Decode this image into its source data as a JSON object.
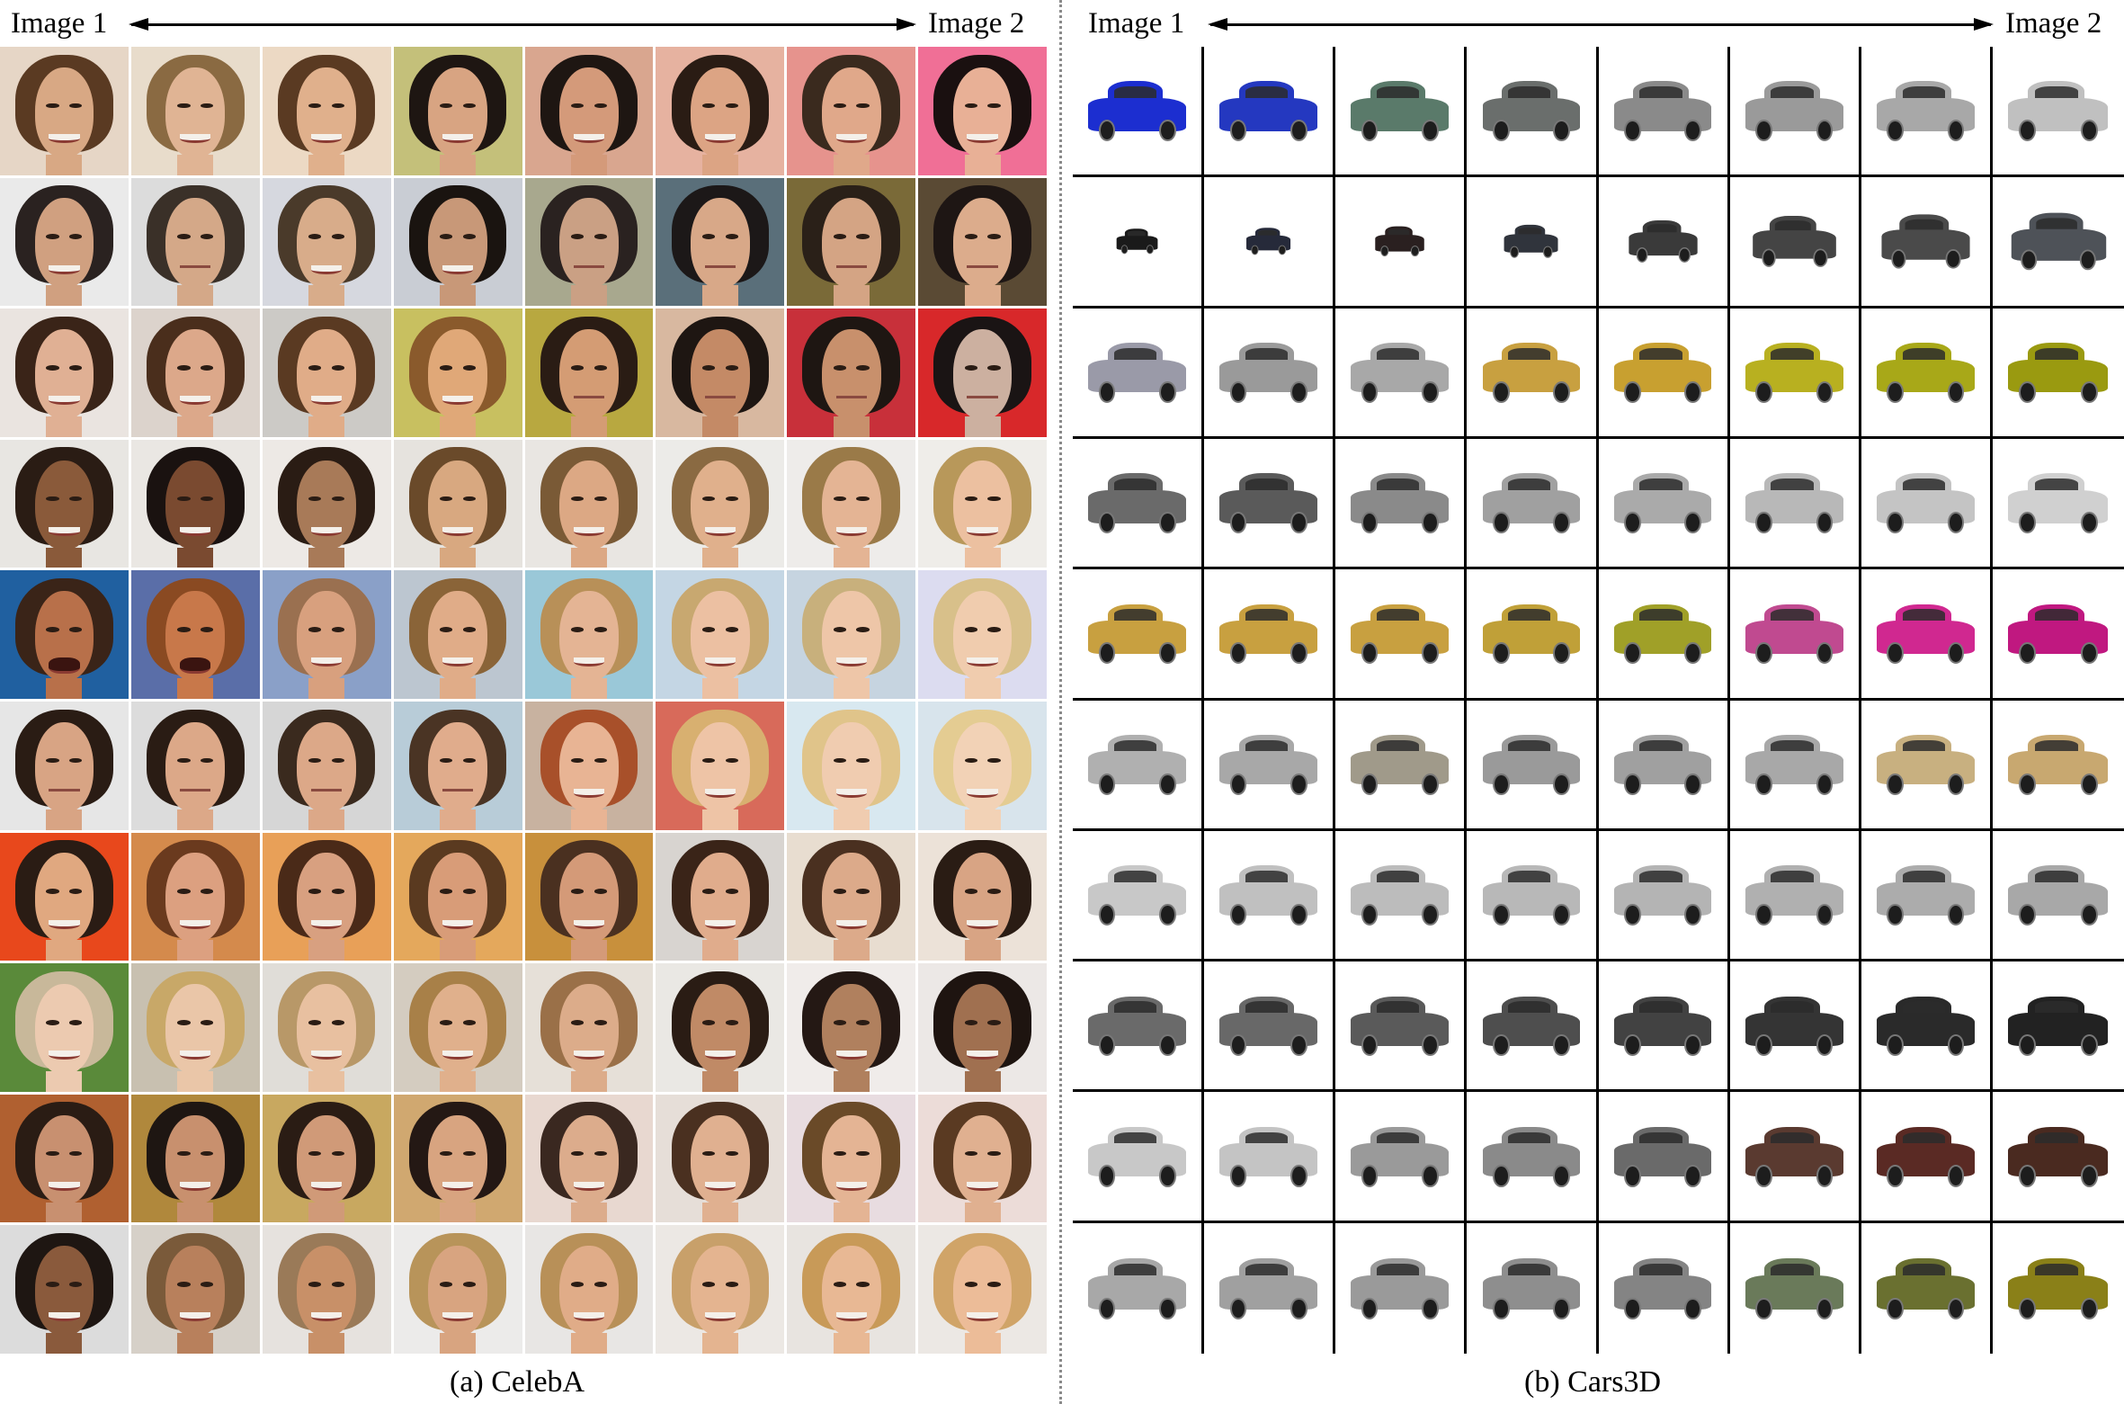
{
  "left_panel": {
    "start_label": "Image 1",
    "end_label": "Image 2",
    "caption": "(a) CelebA",
    "backgrounds": [
      [
        "#e6d6c6",
        "#e8dccb",
        "#ecd9c4",
        "#c4c07a",
        "#d9a68f",
        "#e6b2a0",
        "#e6938d",
        "#f06f96"
      ],
      [
        "#eaeaea",
        "#dcdcdc",
        "#d6d8df",
        "#c9cdd4",
        "#a8a88e",
        "#5a6f7a",
        "#7a6a38",
        "#5a4a34"
      ],
      [
        "#eae4e0",
        "#dcd3cc",
        "#cccac6",
        "#c8c060",
        "#b8a840",
        "#d8b8a0",
        "#c8303a",
        "#d8282a"
      ],
      [
        "#e8e6e2",
        "#eae7e3",
        "#ede9e5",
        "#e6e3de",
        "#e9e6e2",
        "#ecebe8",
        "#eeecea",
        "#efede9"
      ],
      [
        "#2060a0",
        "#5a6ea8",
        "#8aa0c8",
        "#bcc6d0",
        "#9ac8d8",
        "#c4d6e4",
        "#c6d4e0",
        "#dcdcf0"
      ],
      [
        "#e6e6e6",
        "#dcdcdc",
        "#d6d6d6",
        "#b8ccd8",
        "#c8b2a0",
        "#d86a5a",
        "#d8e8f0",
        "#d8e4ec"
      ],
      [
        "#e8481c",
        "#d48a4c",
        "#e8a058",
        "#e4a85c",
        "#c8903c",
        "#d8d4d0",
        "#e8ddd0",
        "#ece2d8"
      ],
      [
        "#5a8a3a",
        "#c8c0b0",
        "#e0ddd8",
        "#d4ccc0",
        "#e6e0d8",
        "#eae8e4",
        "#f0ecea",
        "#ece8e6"
      ],
      [
        "#b06030",
        "#b0883c",
        "#c8a860",
        "#d0a870",
        "#e8d8d0",
        "#e6ded8",
        "#e8dce0",
        "#ecdcd8"
      ],
      [
        "#dcdcdc",
        "#d6d0c8",
        "#e6e2de",
        "#ecebea",
        "#e8e6e4",
        "#ece8e4",
        "#e8e4e0",
        "#ece8e4"
      ]
    ],
    "hair_colors": [
      [
        "#5a3a22",
        "#8a6a42",
        "#5a3a22",
        "#1e1612",
        "#1e1612",
        "#2a1c14",
        "#3a2a1e",
        "#1a1010"
      ],
      [
        "#2a2220",
        "#3a3028",
        "#4a3a2a",
        "#1a1410",
        "#2a2220",
        "#1c1818",
        "#2a2018",
        "#1e1614"
      ],
      [
        "#3a2418",
        "#4a2e1c",
        "#5a3a22",
        "#8a5a2c",
        "#2a1c14",
        "#1e1612",
        "#1e1612",
        "#1a1414"
      ],
      [
        "#2a1c14",
        "#1a1210",
        "#2a1c14",
        "#6a4a2a",
        "#7a5a36",
        "#8a6a42",
        "#9a7a48",
        "#b8985a"
      ],
      [
        "#3a2418",
        "#8a4a22",
        "#9a7050",
        "#8a6438",
        "#b89058",
        "#c8a870",
        "#c8b07c",
        "#d8c08a"
      ],
      [
        "#2a1c14",
        "#2a1c14",
        "#3a2a1e",
        "#4a3424",
        "#a8502a",
        "#d8b070",
        "#e0c48a",
        "#e4cc92"
      ],
      [
        "#2a1c14",
        "#6a3a1e",
        "#4a2a18",
        "#5a3a20",
        "#4a3020",
        "#3a2418",
        "#4a3020",
        "#2a1c14"
      ],
      [
        "#c8b89a",
        "#c8a868",
        "#b89868",
        "#a88048",
        "#9a7048",
        "#2a1c14",
        "#241814",
        "#1e1410"
      ],
      [
        "#2a1c14",
        "#1e1612",
        "#2a1c14",
        "#241814",
        "#3a2820",
        "#4a3020",
        "#6a4a28",
        "#5a3a22"
      ],
      [
        "#1e1612",
        "#7a5a3a",
        "#9a7a58",
        "#b8945a",
        "#b89058",
        "#c8a06a",
        "#c89a58",
        "#d0a468"
      ]
    ],
    "skin_colors": [
      [
        "#d8a884",
        "#e0b494",
        "#e0b08c",
        "#d8a482",
        "#d49a7a",
        "#dca484",
        "#e0a88a",
        "#e8b096"
      ],
      [
        "#d0a080",
        "#d4a888",
        "#d8ac8a",
        "#c89878",
        "#caa084",
        "#d8a888",
        "#d4a484",
        "#dcac8c"
      ],
      [
        "#e0b094",
        "#dca88a",
        "#e0ac88",
        "#e0a878",
        "#d49c74",
        "#c48a66",
        "#c8906c",
        "#ccb0a0"
      ],
      [
        "#8a5a3a",
        "#7a4a30",
        "#a87a58",
        "#d8a880",
        "#dca884",
        "#e0b08c",
        "#e4b494",
        "#ecc0a0"
      ],
      [
        "#b8704a",
        "#c8784a",
        "#d8a07e",
        "#e0ac88",
        "#e4b494",
        "#ecc0a2",
        "#eec6a8",
        "#f0ccae"
      ],
      [
        "#d8a484",
        "#dca888",
        "#dca888",
        "#e0ac8c",
        "#e8b494",
        "#eec4a6",
        "#f0ccb0",
        "#f2d2b6"
      ],
      [
        "#e0a880",
        "#dca080",
        "#d8a080",
        "#d89c78",
        "#d49a78",
        "#e0ac8c",
        "#dcaa8a",
        "#d8a484"
      ],
      [
        "#eccab0",
        "#eac6a8",
        "#e8c0a0",
        "#e0b08c",
        "#dcac8a",
        "#c08a66",
        "#b0805e",
        "#a07050"
      ],
      [
        "#c89070",
        "#c8906e",
        "#d09a78",
        "#d8a480",
        "#dcac8c",
        "#e0b090",
        "#e4b494",
        "#e0b090"
      ],
      [
        "#8a5a3c",
        "#b8805c",
        "#c89068",
        "#d8a480",
        "#e0ac88",
        "#e4b490",
        "#e8b894",
        "#ecbc98"
      ]
    ],
    "expressions": [
      [
        "smile",
        "smile",
        "smile",
        "smile",
        "smile",
        "smile",
        "smile",
        "smile"
      ],
      [
        "smile",
        "neutral",
        "smile",
        "smile",
        "neutral",
        "neutral",
        "neutral",
        "neutral"
      ],
      [
        "smile",
        "smile",
        "smile",
        "smile",
        "neutral",
        "neutral",
        "neutral",
        "neutral"
      ],
      [
        "smile",
        "smile",
        "smile",
        "smile",
        "smile",
        "smile",
        "smile",
        "smile"
      ],
      [
        "open",
        "open",
        "smile",
        "smile",
        "smile",
        "smile",
        "smile",
        "smile"
      ],
      [
        "neutral",
        "neutral",
        "neutral",
        "neutral",
        "smile",
        "smile",
        "smile",
        "smile"
      ],
      [
        "smile",
        "smile",
        "smile",
        "smile",
        "smile",
        "smile",
        "smile",
        "smile"
      ],
      [
        "smile",
        "smile",
        "smile",
        "smile",
        "smile",
        "smile",
        "smile",
        "smile"
      ],
      [
        "smile",
        "smile",
        "smile",
        "smile",
        "smile",
        "smile",
        "smile",
        "smile"
      ],
      [
        "smile",
        "smile",
        "smile",
        "smile",
        "smile",
        "smile",
        "smile",
        "smile"
      ]
    ]
  },
  "right_panel": {
    "start_label": "Image 1",
    "end_label": "Image 2",
    "caption": "(b) Cars3D",
    "car_colors": [
      [
        "#1c2ed0",
        "#2438c0",
        "#5a7a6a",
        "#6a6e6c",
        "#8a8a8a",
        "#9a9a9a",
        "#a8a8a8",
        "#c0c0c0"
      ],
      [
        "#1a1a1a",
        "#262a3a",
        "#2a2020",
        "#30343c",
        "#3a3a3a",
        "#444444",
        "#4a4a4a",
        "#4e5258"
      ],
      [
        "#9a9aa8",
        "#9a9a9a",
        "#a8a8a8",
        "#c8a040",
        "#c8a030",
        "#b8b020",
        "#a8a818",
        "#9a9a10"
      ],
      [
        "#6a6a6a",
        "#5a5a5a",
        "#8a8a8a",
        "#a0a0a0",
        "#aaaaaa",
        "#b8b8b8",
        "#c4c4c4",
        "#d0d0d0"
      ],
      [
        "#c8a040",
        "#c8a040",
        "#c8a040",
        "#c0a038",
        "#a0a028",
        "#c04a90",
        "#d02890",
        "#c01880"
      ],
      [
        "#b0b0b0",
        "#a8a8a8",
        "#a09a8a",
        "#9a9a9a",
        "#a0a0a0",
        "#a8a8a8",
        "#c8b080",
        "#c8a870"
      ],
      [
        "#c8c8c8",
        "#c0c0c0",
        "#bcbcbc",
        "#b8b8b8",
        "#b4b4b4",
        "#b0b0b0",
        "#acacac",
        "#a8a8a8"
      ],
      [
        "#6a6a6a",
        "#686868",
        "#5a5a5a",
        "#4e4e4e",
        "#424242",
        "#343434",
        "#2a2a2a",
        "#222222"
      ],
      [
        "#c8c8c8",
        "#c4c4c4",
        "#9a9a9a",
        "#8a8a8a",
        "#6a6a6a",
        "#5a3a30",
        "#5a2a24",
        "#4a2a20"
      ],
      [
        "#a8a8a8",
        "#a0a0a0",
        "#9a9a9a",
        "#8e8e8e",
        "#848484",
        "#6a7a5a",
        "#6a7030",
        "#8a8018"
      ]
    ],
    "car_scale": [
      [
        1.0,
        1.0,
        1.0,
        1.0,
        1.0,
        1.0,
        1.0,
        1.0
      ],
      [
        0.42,
        0.45,
        0.5,
        0.55,
        0.7,
        0.85,
        0.9,
        0.95
      ],
      [
        1.0,
        1.0,
        1.0,
        1.0,
        1.0,
        1.0,
        1.0,
        1.0
      ],
      [
        1.0,
        1.0,
        1.0,
        1.0,
        1.0,
        1.0,
        1.0,
        1.0
      ],
      [
        1.0,
        1.0,
        1.0,
        1.0,
        1.0,
        1.0,
        1.0,
        1.0
      ],
      [
        1.0,
        1.0,
        1.0,
        1.0,
        1.0,
        1.0,
        1.0,
        1.0
      ],
      [
        1.0,
        1.0,
        1.0,
        1.0,
        1.0,
        1.0,
        1.0,
        1.0
      ],
      [
        1.0,
        1.0,
        1.0,
        1.0,
        1.0,
        1.0,
        1.0,
        1.0
      ],
      [
        1.0,
        1.0,
        1.0,
        1.0,
        1.0,
        1.0,
        1.0,
        1.0
      ],
      [
        1.0,
        1.0,
        1.0,
        1.0,
        1.0,
        1.0,
        1.0,
        1.0
      ]
    ]
  }
}
